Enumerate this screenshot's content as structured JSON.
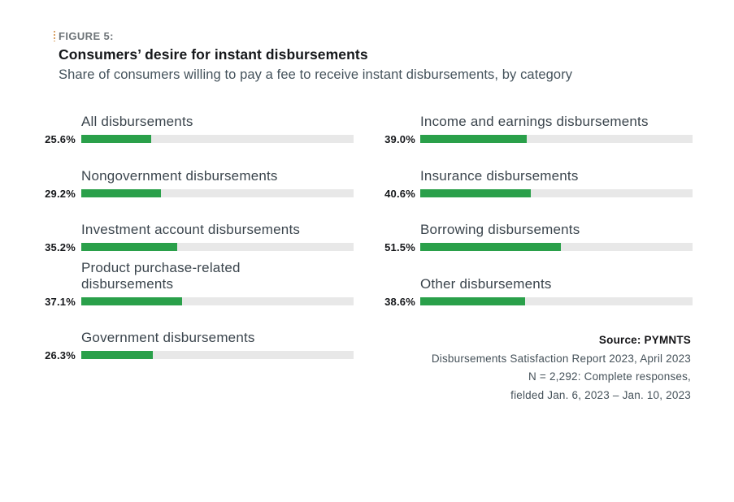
{
  "theme": {
    "bar-fill": "#2aa04a",
    "bar-track": "#e8e8e8",
    "accent-tick": "#d9a267"
  },
  "header": {
    "figure_label": "FIGURE 5:",
    "title": "Consumers’ desire for instant disbursements",
    "subtitle": "Share of consumers willing to pay a fee to receive instant disbursements, by category"
  },
  "chart_data": {
    "type": "bar",
    "orientation": "horizontal",
    "unit": "%",
    "value_range": [
      0,
      100
    ],
    "grid": "off",
    "legend": "none",
    "title": "Consumers’ desire for instant disbursements",
    "subtitle": "Share of consumers willing to pay a fee to receive instant disbursements, by category",
    "columns": {
      "left": [
        {
          "category": "All disbursements",
          "value": 25.6,
          "label": "25.6%"
        },
        {
          "category": "Nongovernment disbursements",
          "value": 29.2,
          "label": "29.2%"
        },
        {
          "category": "Investment account disbursements",
          "value": 35.2,
          "label": "35.2%"
        },
        {
          "category": "Product purchase-related disbursements",
          "value": 37.1,
          "label": "37.1%"
        },
        {
          "category": "Government disbursements",
          "value": 26.3,
          "label": "26.3%"
        }
      ],
      "right": [
        {
          "category": "Income and earnings disbursements",
          "value": 39.0,
          "label": "39.0%"
        },
        {
          "category": "Insurance disbursements",
          "value": 40.6,
          "label": "40.6%"
        },
        {
          "category": "Borrowing disbursements",
          "value": 51.5,
          "label": "51.5%"
        },
        {
          "category": "Other disbursements",
          "value": 38.6,
          "label": "38.6%"
        }
      ]
    }
  },
  "source": {
    "line1": "Source: PYMNTS",
    "line2": "Disbursements Satisfaction Report 2023, April 2023",
    "line3": "N = 2,292: Complete responses,",
    "line4": "fielded Jan. 6, 2023 – Jan. 10, 2023"
  }
}
